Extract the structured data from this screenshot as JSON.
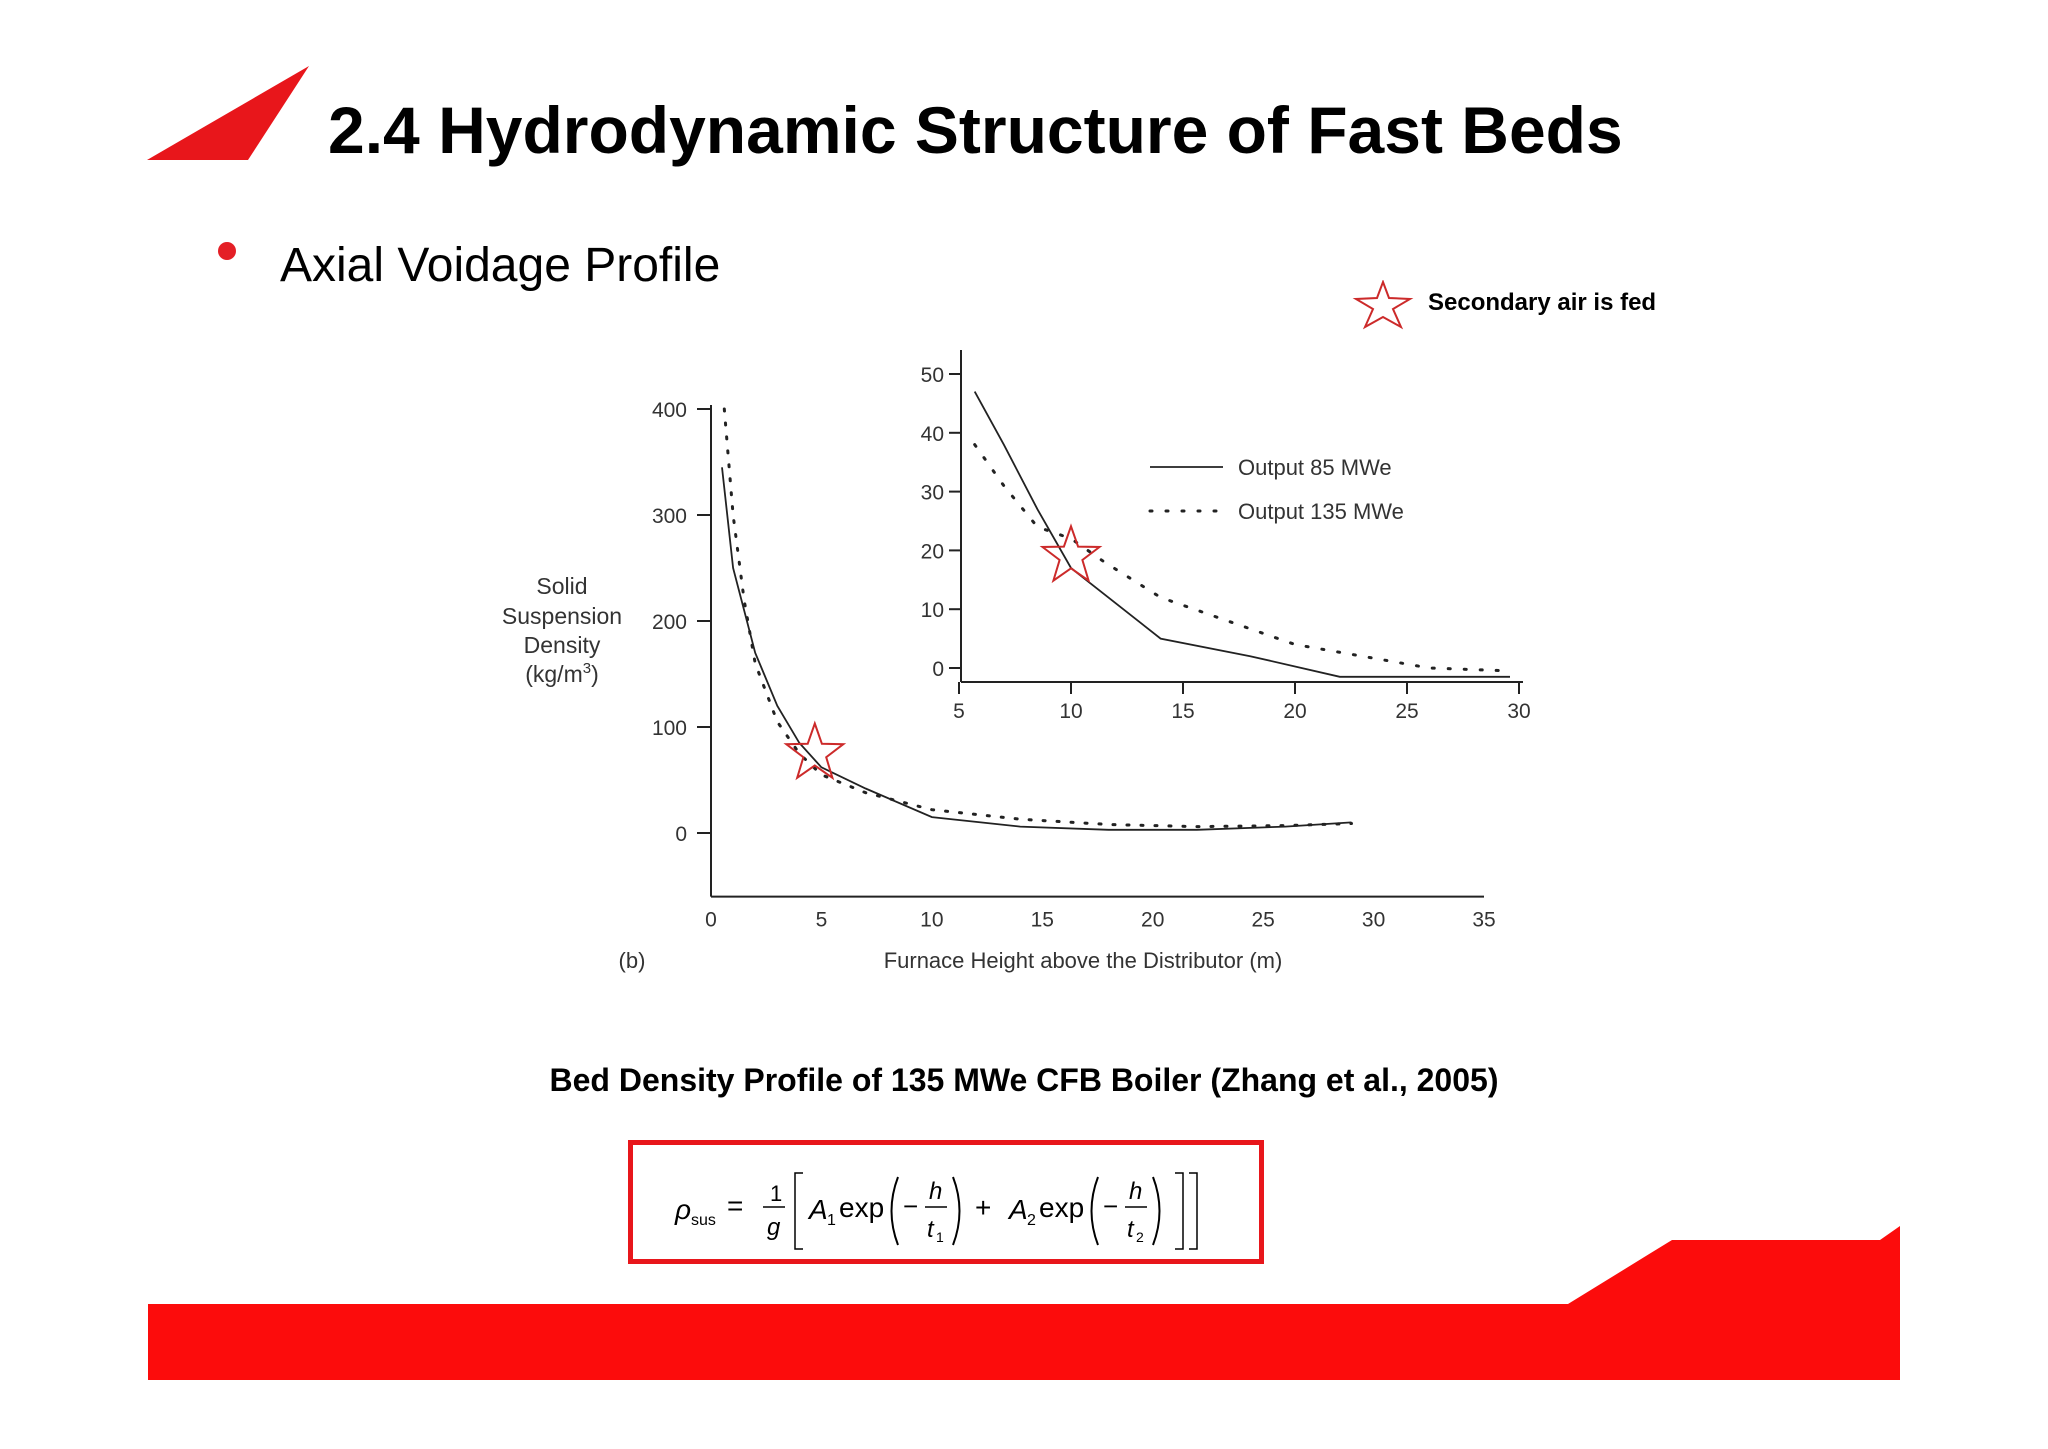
{
  "slide": {
    "title": "2.4 Hydrodynamic Structure of Fast Beds",
    "bullet": "Axial Voidage Profile",
    "secondary_air_note": "Secondary air is fed",
    "caption": "Bed Density Profile of 135 MWe CFB Boiler (Zhang et al., 2005)",
    "colors": {
      "accent_red": "#e8161b",
      "star_stroke": "#cc2a2a"
    }
  },
  "formula": {
    "lhs": "ρ",
    "lhs_sub": "sus",
    "frac1_num": "1",
    "frac1_den": "g",
    "A1": "A",
    "A1_sub": "1",
    "exp": "exp",
    "h": "h",
    "t1": "t",
    "t1_sub": "1",
    "A2": "A",
    "A2_sub": "2",
    "t2": "t",
    "t2_sub": "2"
  },
  "chart_data": [
    {
      "type": "line",
      "panel_label": "(b)",
      "ylabel": [
        "Solid",
        "Suspension",
        "Density",
        "(kg/m",
        "3",
        ")"
      ],
      "xlabel": "Furnace Height above the Distributor (m)",
      "xlim": [
        0,
        35
      ],
      "ylim": [
        -60,
        400
      ],
      "xticks": [
        "0",
        "5",
        "10",
        "15",
        "20",
        "25",
        "30",
        "35"
      ],
      "yticks": [
        "400",
        "300",
        "200",
        "100",
        "0"
      ],
      "series": [
        {
          "style": "solid",
          "x": [
            0.5,
            1,
            2,
            3,
            4,
            5,
            7,
            10,
            14,
            18,
            22,
            26,
            29
          ],
          "y": [
            345,
            250,
            170,
            120,
            85,
            62,
            42,
            15,
            6,
            3,
            3,
            6,
            10
          ]
        },
        {
          "style": "dotted",
          "x": [
            0.6,
            1,
            1.5,
            2,
            3,
            4,
            5,
            7,
            10,
            14,
            18,
            22,
            26,
            29
          ],
          "y": [
            400,
            300,
            220,
            160,
            105,
            75,
            55,
            38,
            22,
            13,
            8,
            6,
            7,
            9
          ]
        }
      ],
      "annotations": [
        {
          "marker": "star",
          "x": 4.7,
          "y": 75
        }
      ]
    },
    {
      "type": "line",
      "inset": true,
      "xlim": [
        5,
        30
      ],
      "ylim": [
        -2,
        55
      ],
      "xticks": [
        "5",
        "10",
        "15",
        "20",
        "25",
        "30"
      ],
      "yticks": [
        "50",
        "40",
        "30",
        "20",
        "10",
        "0"
      ],
      "legend_position": "top-right",
      "series": [
        {
          "name": "Output 85 MWe",
          "style": "solid",
          "x": [
            5.7,
            7,
            8.5,
            10,
            11,
            14,
            18,
            22,
            26,
            29.6
          ],
          "y": [
            47,
            38,
            27,
            17,
            14,
            5,
            2,
            -1.5,
            -1.5,
            -1.5
          ]
        },
        {
          "name": "Output 135 MWe",
          "style": "dotted",
          "x": [
            5.7,
            7,
            8.5,
            10,
            11.5,
            14,
            17,
            20,
            23,
            26,
            29.6
          ],
          "y": [
            38,
            31,
            24,
            22,
            18,
            12,
            8,
            4,
            2,
            0,
            -0.5
          ]
        }
      ],
      "annotations": [
        {
          "marker": "star",
          "x": 10,
          "y": 19
        }
      ]
    }
  ]
}
